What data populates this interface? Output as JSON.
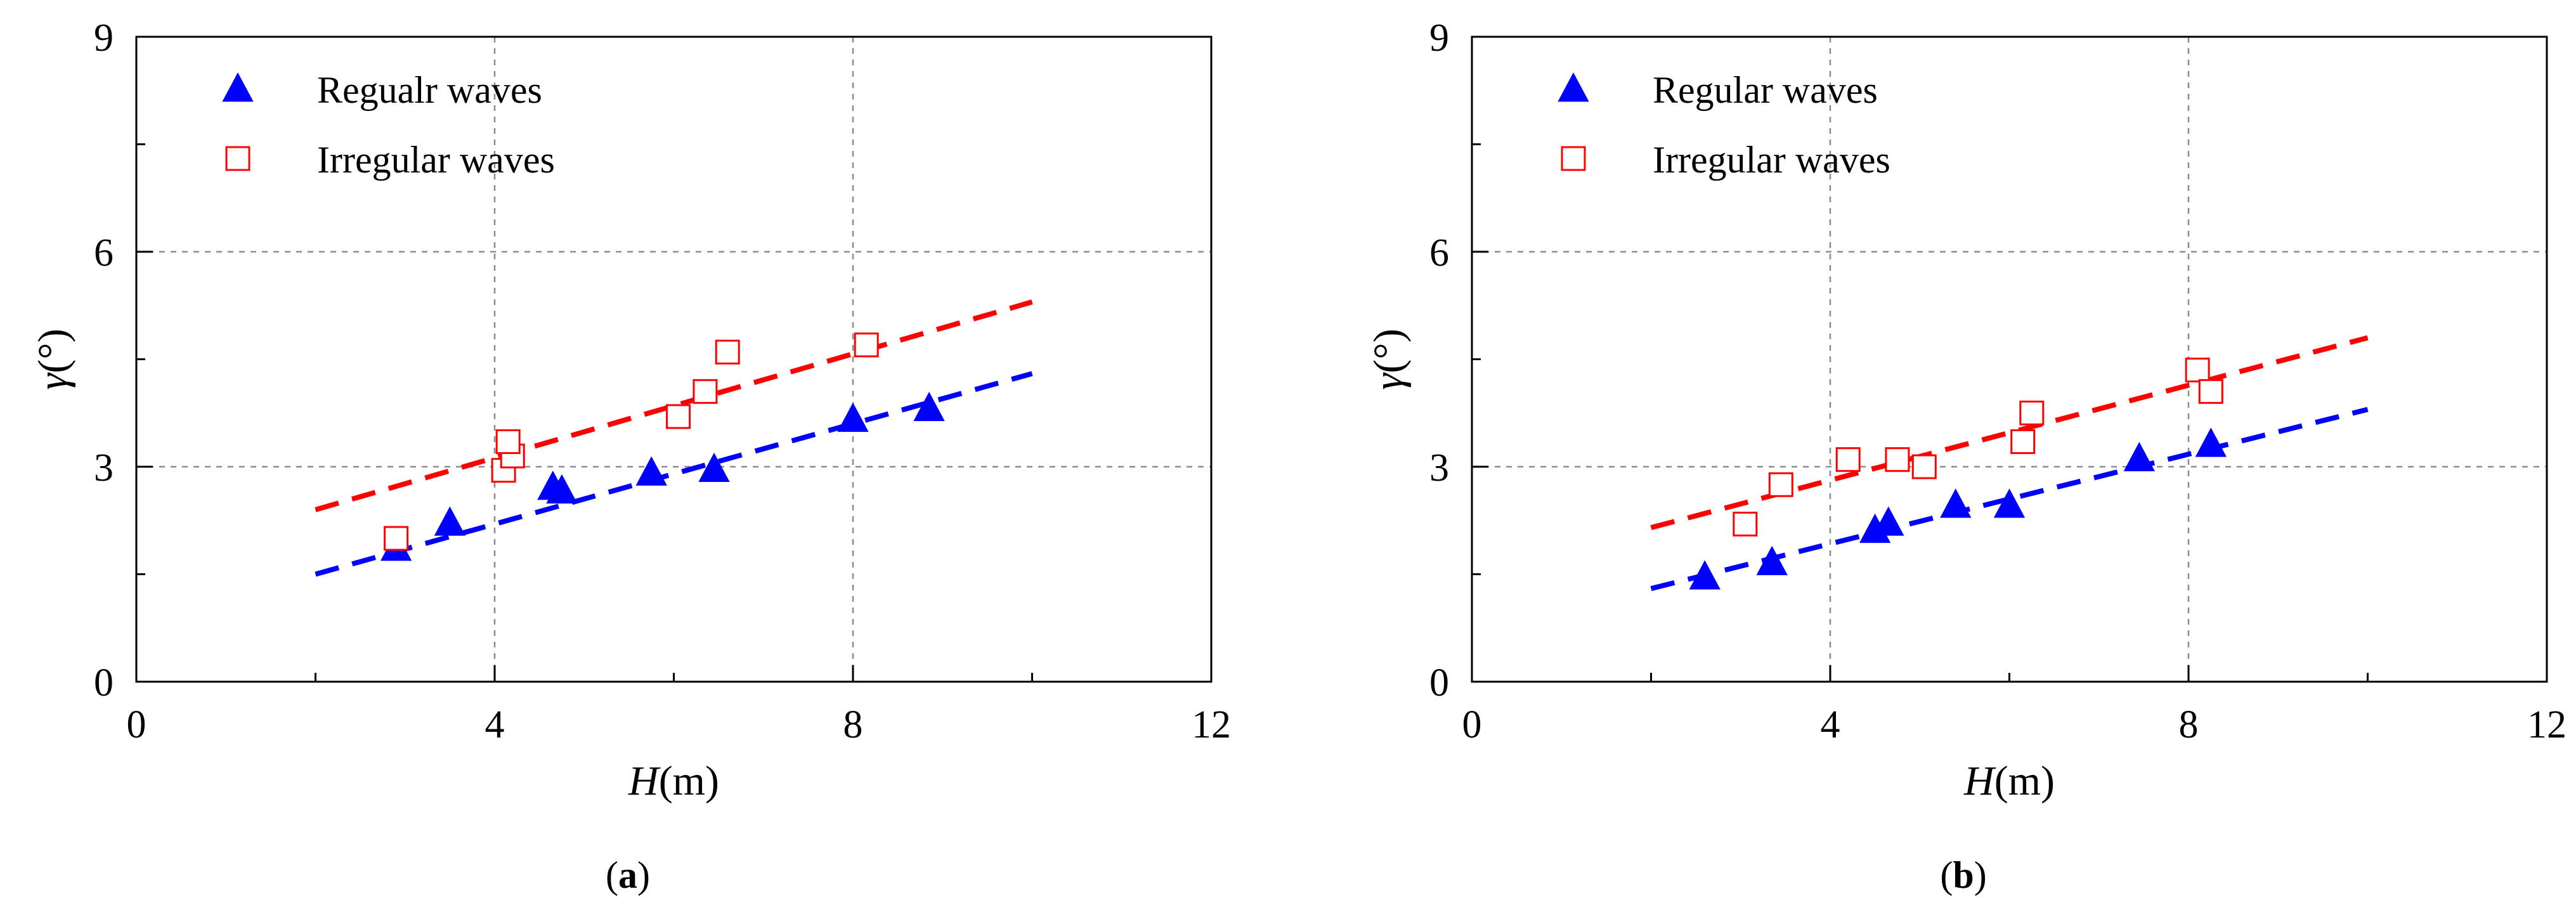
{
  "colors": {
    "regular": "#0000ff",
    "irregular": "#ff0000",
    "grid": "#8c8c8c",
    "axis": "#000000"
  },
  "chart_data": [
    {
      "type": "scatter",
      "panel_label": "a",
      "xlabel_symbol": "H",
      "xlabel_unit": "(m)",
      "ylabel_symbol": "γ",
      "ylabel_unit": "(°)",
      "xlim": [
        0,
        12
      ],
      "ylim": [
        0,
        9
      ],
      "xticks": [
        "0",
        "4",
        "8",
        "12"
      ],
      "yticks": [
        "0",
        "3",
        "6",
        "9"
      ],
      "grid": true,
      "legend_position": "top-left",
      "series": [
        {
          "name": "Regualr waves",
          "marker": "filled-triangle",
          "color": "#0000ff",
          "points": [
            [
              2.9,
              1.85
            ],
            [
              3.5,
              2.2
            ],
            [
              4.65,
              2.7
            ],
            [
              4.75,
              2.65
            ],
            [
              5.75,
              2.9
            ],
            [
              6.45,
              2.95
            ],
            [
              8.0,
              3.65
            ],
            [
              8.85,
              3.8
            ]
          ],
          "fit": [
            [
              2.0,
              1.5
            ],
            [
              10.0,
              4.3
            ]
          ]
        },
        {
          "name": "Irregular waves",
          "marker": "open-square",
          "color": "#ff0000",
          "points": [
            [
              2.9,
              2.0
            ],
            [
              4.1,
              2.95
            ],
            [
              4.2,
              3.15
            ],
            [
              4.15,
              3.35
            ],
            [
              6.05,
              3.7
            ],
            [
              6.35,
              4.05
            ],
            [
              6.6,
              4.6
            ],
            [
              8.15,
              4.7
            ]
          ],
          "fit": [
            [
              2.0,
              2.4
            ],
            [
              10.0,
              5.3
            ]
          ]
        }
      ]
    },
    {
      "type": "scatter",
      "panel_label": "b",
      "xlabel_symbol": "H",
      "xlabel_unit": "(m)",
      "ylabel_symbol": "γ",
      "ylabel_unit": "(°)",
      "xlim": [
        0,
        12
      ],
      "ylim": [
        0,
        9
      ],
      "xticks": [
        "0",
        "4",
        "8",
        "12"
      ],
      "yticks": [
        "0",
        "3",
        "6",
        "9"
      ],
      "grid": true,
      "legend_position": "top-left",
      "series": [
        {
          "name": "Regular waves",
          "marker": "filled-triangle",
          "color": "#0000ff",
          "points": [
            [
              2.6,
              1.45
            ],
            [
              3.35,
              1.65
            ],
            [
              4.5,
              2.1
            ],
            [
              4.65,
              2.2
            ],
            [
              5.4,
              2.45
            ],
            [
              6.0,
              2.45
            ],
            [
              7.45,
              3.1
            ],
            [
              8.25,
              3.3
            ]
          ],
          "fit": [
            [
              2.0,
              1.3
            ],
            [
              10.0,
              3.8
            ]
          ]
        },
        {
          "name": "Irregular waves",
          "marker": "open-square",
          "color": "#ff0000",
          "points": [
            [
              3.05,
              2.2
            ],
            [
              3.45,
              2.75
            ],
            [
              4.2,
              3.1
            ],
            [
              4.75,
              3.1
            ],
            [
              5.05,
              3.0
            ],
            [
              6.15,
              3.35
            ],
            [
              6.25,
              3.75
            ],
            [
              8.1,
              4.35
            ],
            [
              8.25,
              4.05
            ]
          ],
          "fit": [
            [
              2.0,
              2.15
            ],
            [
              10.0,
              4.8
            ]
          ]
        }
      ]
    }
  ]
}
